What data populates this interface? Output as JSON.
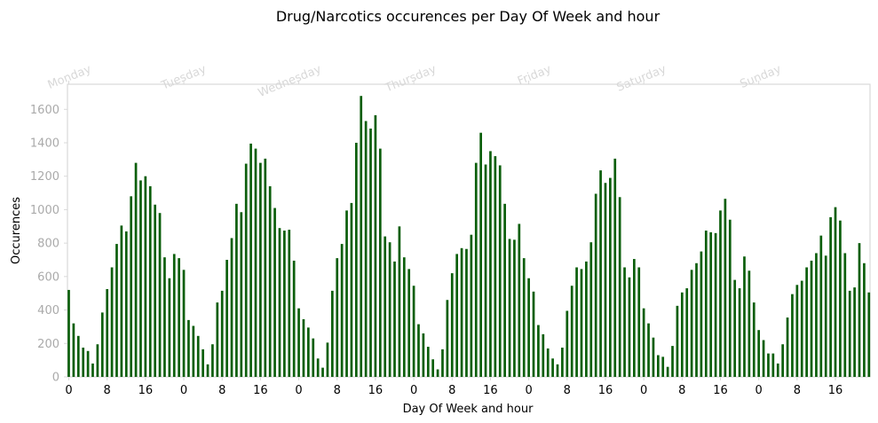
{
  "chart_data": {
    "type": "bar",
    "title": "Drug/Narcotics occurences per Day Of Week and hour",
    "xlabel": "Day Of Week and hour",
    "ylabel": "Occurences",
    "ylim": [
      0,
      1750
    ],
    "yticks": [
      0,
      200,
      400,
      600,
      800,
      1000,
      1200,
      1400,
      1600
    ],
    "xtick_labels": [
      "0",
      "8",
      "16",
      "0",
      "8",
      "16",
      "0",
      "8",
      "16",
      "0",
      "8",
      "16",
      "0",
      "8",
      "16",
      "0",
      "8",
      "16",
      "0",
      "8",
      "16"
    ],
    "days": [
      "Monday",
      "Tuesday",
      "Wednesday",
      "Thursday",
      "Friday",
      "Saturday",
      "Sunday"
    ],
    "bar_color": "#0b5e0b",
    "grid": false,
    "x": [
      0,
      1,
      2,
      3,
      4,
      5,
      6,
      7,
      8,
      9,
      10,
      11,
      12,
      13,
      14,
      15,
      16,
      17,
      18,
      19,
      20,
      21,
      22,
      23,
      24,
      25,
      26,
      27,
      28,
      29,
      30,
      31,
      32,
      33,
      34,
      35,
      36,
      37,
      38,
      39,
      40,
      41,
      42,
      43,
      44,
      45,
      46,
      47,
      48,
      49,
      50,
      51,
      52,
      53,
      54,
      55,
      56,
      57,
      58,
      59,
      60,
      61,
      62,
      63,
      64,
      65,
      66,
      67,
      68,
      69,
      70,
      71,
      72,
      73,
      74,
      75,
      76,
      77,
      78,
      79,
      80,
      81,
      82,
      83,
      84,
      85,
      86,
      87,
      88,
      89,
      90,
      91,
      92,
      93,
      94,
      95,
      96,
      97,
      98,
      99,
      100,
      101,
      102,
      103,
      104,
      105,
      106,
      107,
      108,
      109,
      110,
      111,
      112,
      113,
      114,
      115,
      116,
      117,
      118,
      119,
      120,
      121,
      122,
      123,
      124,
      125,
      126,
      127,
      128,
      129,
      130,
      131,
      132,
      133,
      134,
      135,
      136,
      137,
      138,
      139,
      140,
      141,
      142,
      143,
      144,
      145,
      146,
      147,
      148,
      149,
      150,
      151,
      152,
      153,
      154,
      155,
      156,
      157,
      158,
      159,
      160,
      161,
      162,
      163,
      164,
      165,
      166,
      167
    ],
    "values": [
      520,
      320,
      245,
      175,
      155,
      80,
      195,
      385,
      525,
      655,
      795,
      905,
      870,
      1080,
      1280,
      1175,
      1200,
      1140,
      1030,
      980,
      715,
      590,
      735,
      710,
      640,
      340,
      305,
      245,
      165,
      75,
      195,
      445,
      515,
      700,
      830,
      1035,
      985,
      1275,
      1395,
      1365,
      1280,
      1305,
      1140,
      1010,
      890,
      875,
      880,
      695,
      410,
      345,
      295,
      230,
      110,
      55,
      205,
      515,
      710,
      795,
      995,
      1040,
      1400,
      1680,
      1530,
      1485,
      1565,
      1365,
      840,
      805,
      690,
      900,
      715,
      645,
      545,
      315,
      260,
      180,
      105,
      45,
      165,
      460,
      620,
      735,
      770,
      765,
      850,
      1280,
      1460,
      1270,
      1350,
      1320,
      1265,
      1035,
      825,
      820,
      915,
      710,
      590,
      510,
      310,
      255,
      170,
      110,
      75,
      175,
      395,
      545,
      655,
      645,
      690,
      805,
      1095,
      1235,
      1160,
      1190,
      1305,
      1075,
      655,
      595,
      705,
      655,
      410,
      320,
      235,
      130,
      120,
      60,
      185,
      425,
      505,
      530,
      640,
      680,
      750,
      875,
      865,
      860,
      995,
      1065,
      940,
      580,
      530,
      720,
      635,
      445,
      280,
      220,
      140,
      140,
      80,
      195,
      355,
      495,
      550,
      575,
      655,
      695,
      740,
      845,
      725,
      955,
      1015,
      935,
      740,
      515,
      535,
      800,
      680,
      505
    ]
  }
}
